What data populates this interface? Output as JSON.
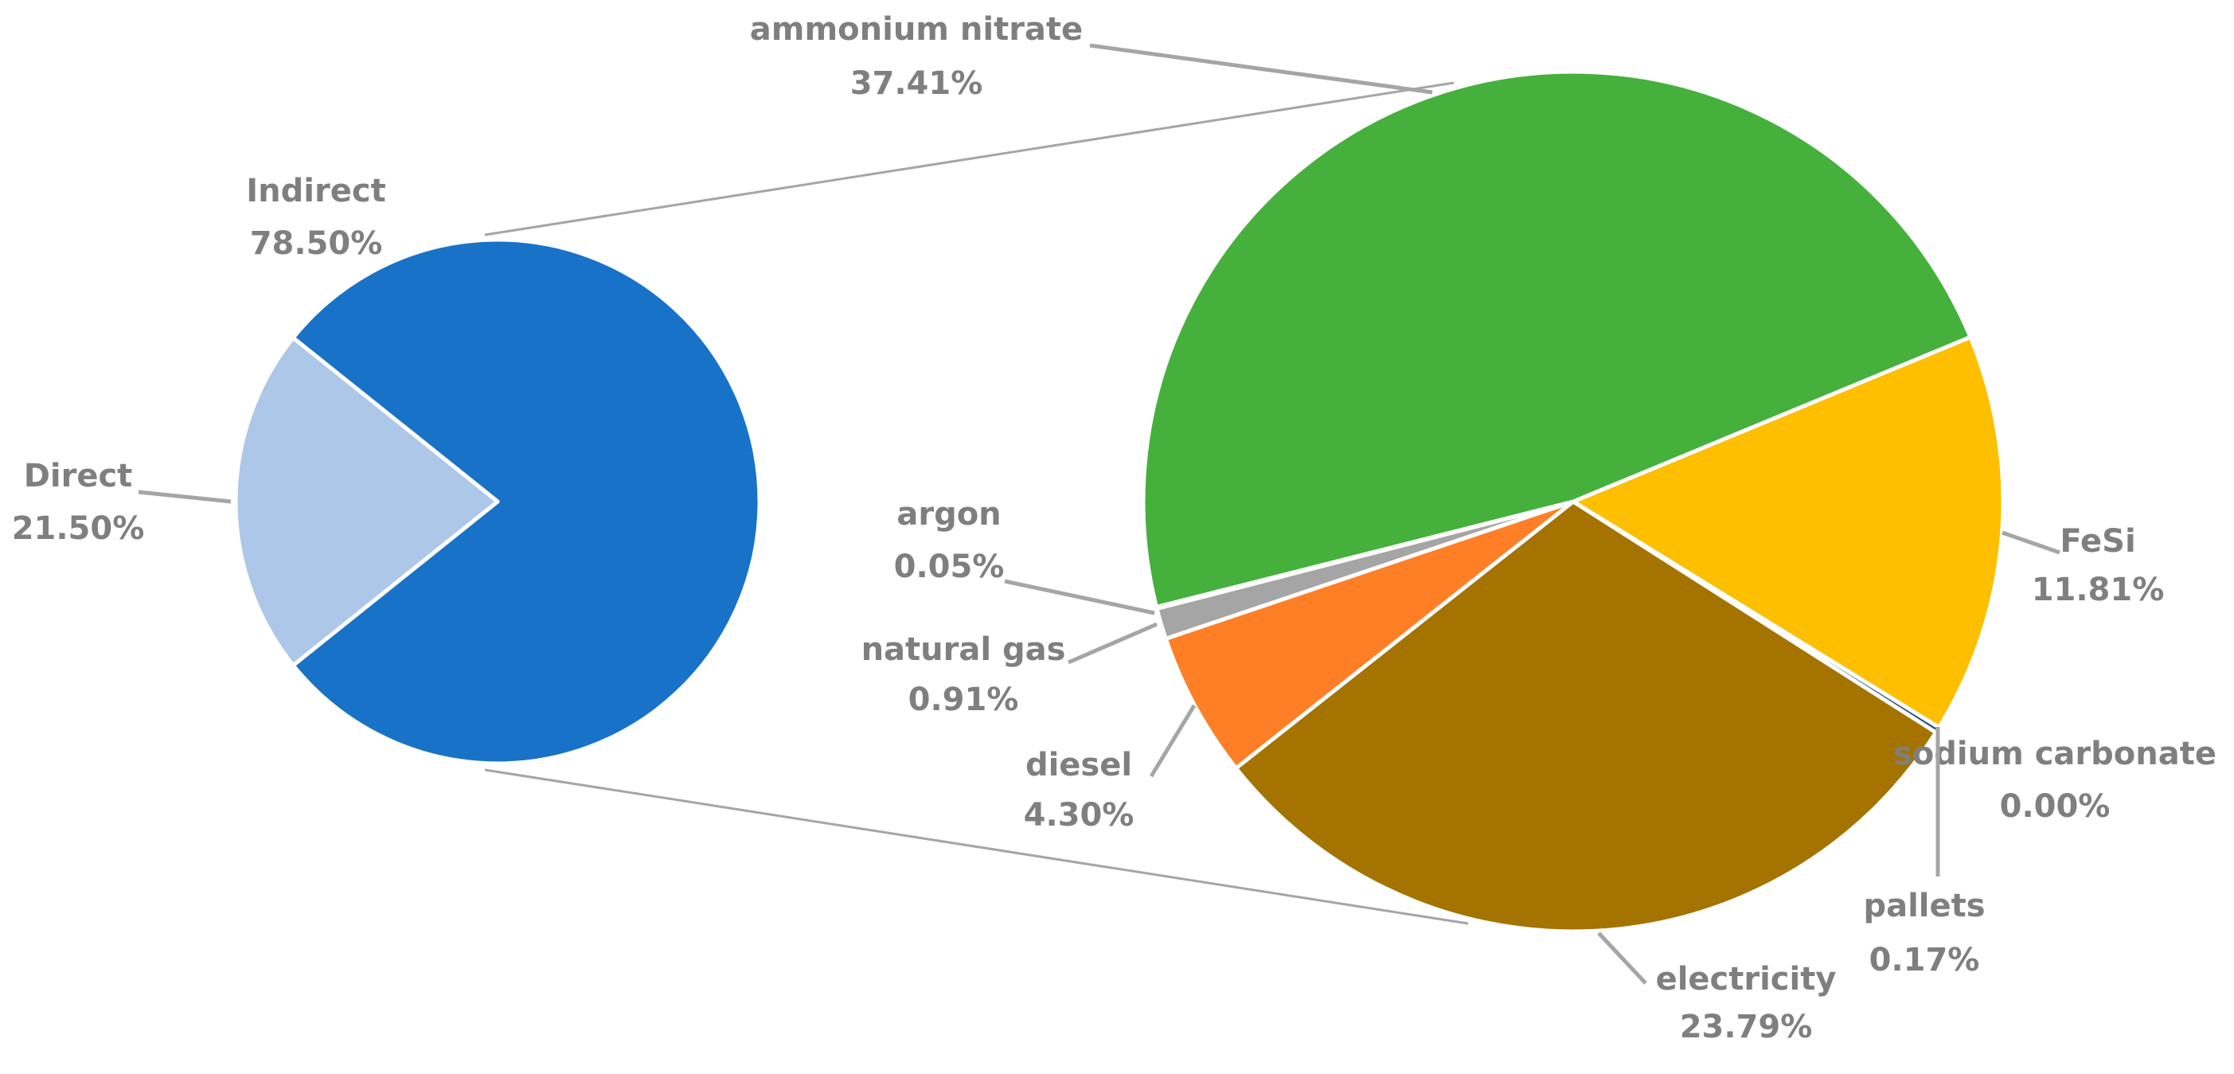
{
  "chart_data": [
    {
      "type": "pie",
      "categories": [
        "Indirect",
        "Direct"
      ],
      "values": [
        78.5,
        21.5
      ],
      "value_labels": [
        "78.50%",
        "21.50%"
      ],
      "colors": [
        "#1872c8",
        "#adc7e8"
      ]
    },
    {
      "type": "pie",
      "categories": [
        "FeSi",
        "sodium carbonate",
        "pallets",
        "electricity",
        "diesel",
        "natural gas",
        "argon",
        "ammonium nitrate"
      ],
      "values": [
        11.81,
        0.0,
        0.17,
        23.79,
        4.3,
        0.91,
        0.05,
        37.41
      ],
      "value_labels": [
        "11.81%",
        "0.00%",
        "0.17%",
        "23.79%",
        "4.30%",
        "0.91%",
        "0.05%",
        "37.41%"
      ],
      "colors": [
        "#fdbf00",
        "#4472c4",
        "#264478",
        "#a57300",
        "#ff7f27",
        "#a5a5a5",
        "#7f7f7f",
        "#46b03c"
      ]
    }
  ]
}
